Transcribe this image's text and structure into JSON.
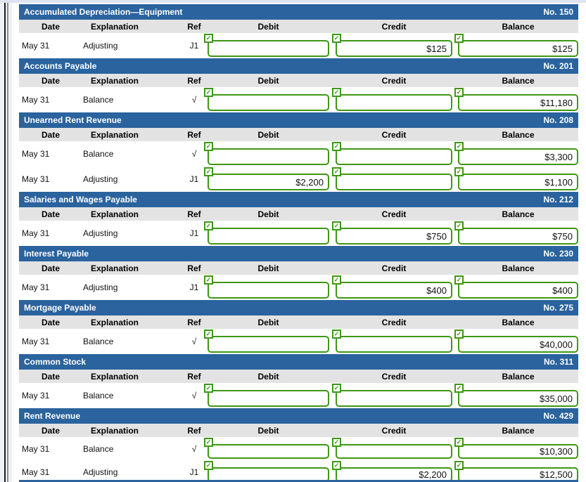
{
  "colors": {
    "header_blue": "#2a639e",
    "column_header_gray": "#e3e3e3",
    "correct_green": "#3e9714",
    "top_strip": "#dee5f1"
  },
  "icons": {
    "check": "✓"
  },
  "columns": {
    "date": "Date",
    "explanation": "Explanation",
    "ref": "Ref",
    "debit": "Debit",
    "credit": "Credit",
    "balance": "Balance"
  },
  "accounts": [
    {
      "title": "Accumulated Depreciation—Equipment",
      "number": "No. 150",
      "rows": [
        {
          "date": "May 31",
          "explanation": "Adjusting",
          "ref": "J1",
          "debit": "",
          "credit": "$125",
          "balance": "$125"
        }
      ]
    },
    {
      "title": "Accounts Payable",
      "number": "No. 201",
      "rows": [
        {
          "date": "May 31",
          "explanation": "Balance",
          "ref": "√",
          "debit": "",
          "credit": "",
          "balance": "$11,180"
        }
      ]
    },
    {
      "title": "Unearned Rent Revenue",
      "number": "No. 208",
      "rows": [
        {
          "date": "May 31",
          "explanation": "Balance",
          "ref": "√",
          "debit": "",
          "credit": "",
          "balance": "$3,300"
        },
        {
          "date": "May 31",
          "explanation": "Adjusting",
          "ref": "J1",
          "debit": "$2,200",
          "credit": "",
          "balance": "$1,100"
        }
      ]
    },
    {
      "title": "Salaries and Wages Payable",
      "number": "No. 212",
      "rows": [
        {
          "date": "May 31",
          "explanation": "Adjusting",
          "ref": "J1",
          "debit": "",
          "credit": "$750",
          "balance": "$750"
        }
      ]
    },
    {
      "title": "Interest Payable",
      "number": "No. 230",
      "rows": [
        {
          "date": "May 31",
          "explanation": "Adjusting",
          "ref": "J1",
          "debit": "",
          "credit": "$400",
          "balance": "$400"
        }
      ]
    },
    {
      "title": "Mortgage Payable",
      "number": "No. 275",
      "rows": [
        {
          "date": "May 31",
          "explanation": "Balance",
          "ref": "√",
          "debit": "",
          "credit": "",
          "balance": "$40,000"
        }
      ]
    },
    {
      "title": "Common Stock",
      "number": "No. 311",
      "rows": [
        {
          "date": "May 31",
          "explanation": "Balance",
          "ref": "√",
          "debit": "",
          "credit": "",
          "balance": "$35,000"
        }
      ]
    },
    {
      "title": "Rent Revenue",
      "number": "No. 429",
      "rows": [
        {
          "date": "May 31",
          "explanation": "Balance",
          "ref": "√",
          "debit": "",
          "credit": "",
          "balance": "$10,300"
        },
        {
          "date": "May 31",
          "explanation": "Adjusting",
          "ref": "J1",
          "debit": "",
          "credit": "$2,200",
          "balance": "$12,500"
        }
      ]
    }
  ]
}
